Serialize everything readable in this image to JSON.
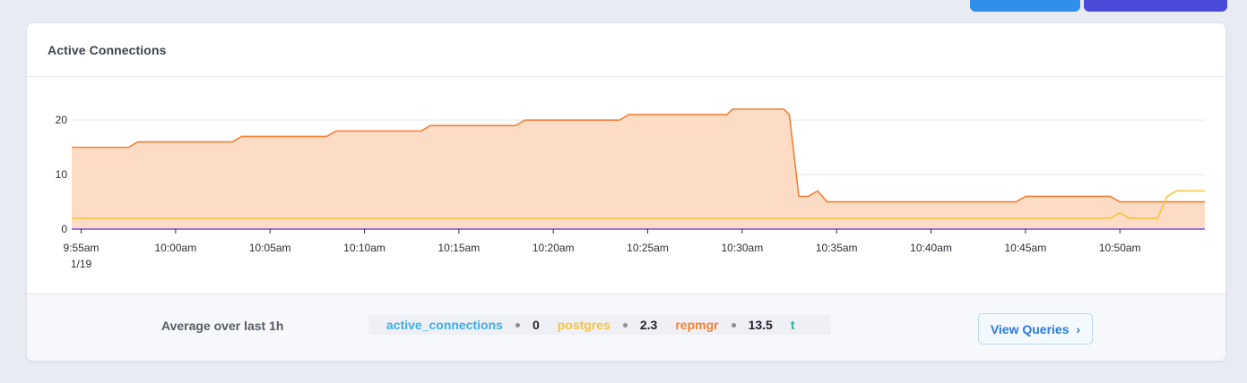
{
  "card": {
    "title": "Active Connections"
  },
  "footer": {
    "average_label": "Average over last 1h",
    "stats": [
      {
        "name": "active_connections",
        "value": "0",
        "color": "#3aaee8"
      },
      {
        "name": "postgres",
        "value": "2.3",
        "color": "#f7c437"
      },
      {
        "name": "repmgr",
        "value": "13.5",
        "color": "#f47f35"
      },
      {
        "name": "t",
        "value": "",
        "color": "#2bb39a"
      }
    ],
    "view_queries_label": "View Queries"
  },
  "chart_data": {
    "type": "area",
    "title": "Active Connections",
    "xlabel": "",
    "ylabel": "",
    "ylim": [
      0,
      22
    ],
    "y_ticks": [
      0,
      10,
      20
    ],
    "x_ticks": [
      {
        "label": "9:55am",
        "sub": "1/19",
        "t": 0
      },
      {
        "label": "10:00am",
        "sub": "",
        "t": 5
      },
      {
        "label": "10:05am",
        "sub": "",
        "t": 10
      },
      {
        "label": "10:10am",
        "sub": "",
        "t": 15
      },
      {
        "label": "10:15am",
        "sub": "",
        "t": 20
      },
      {
        "label": "10:20am",
        "sub": "",
        "t": 25
      },
      {
        "label": "10:25am",
        "sub": "",
        "t": 30
      },
      {
        "label": "10:30am",
        "sub": "",
        "t": 35
      },
      {
        "label": "10:35am",
        "sub": "",
        "t": 40
      },
      {
        "label": "10:40am",
        "sub": "",
        "t": 45
      },
      {
        "label": "10:45am",
        "sub": "",
        "t": 50
      },
      {
        "label": "10:50am",
        "sub": "",
        "t": 55
      }
    ],
    "x_range": [
      -0.5,
      59.5
    ],
    "grid": true,
    "series": [
      {
        "name": "repmgr",
        "color": "#f47f35",
        "fill": "#fddcc6",
        "points": [
          [
            -0.5,
            15
          ],
          [
            2.5,
            15
          ],
          [
            3,
            16
          ],
          [
            8,
            16
          ],
          [
            8.5,
            17
          ],
          [
            13,
            17
          ],
          [
            13.5,
            18
          ],
          [
            18,
            18
          ],
          [
            18.5,
            19
          ],
          [
            23,
            19
          ],
          [
            23.5,
            20
          ],
          [
            28.5,
            20
          ],
          [
            29,
            21
          ],
          [
            34.2,
            21
          ],
          [
            34.5,
            22
          ],
          [
            37.2,
            22
          ],
          [
            37.5,
            21
          ],
          [
            38,
            6
          ],
          [
            38.5,
            6
          ],
          [
            39,
            7
          ],
          [
            39.5,
            5
          ],
          [
            46.5,
            5
          ],
          [
            47,
            5
          ],
          [
            49.5,
            5
          ],
          [
            50,
            6
          ],
          [
            54.5,
            6
          ],
          [
            55,
            5
          ],
          [
            59.5,
            5
          ]
        ]
      },
      {
        "name": "postgres",
        "color": "#f7c437",
        "fill": "",
        "points": [
          [
            -0.5,
            2
          ],
          [
            54.5,
            2
          ],
          [
            55,
            3
          ],
          [
            55.5,
            2
          ],
          [
            57,
            2
          ],
          [
            57.5,
            6
          ],
          [
            58,
            7
          ],
          [
            59.5,
            7
          ]
        ]
      },
      {
        "name": "active_connections",
        "color": "#7b4fd9",
        "fill": "",
        "points": [
          [
            -0.5,
            0
          ],
          [
            59.5,
            0
          ]
        ]
      }
    ]
  }
}
